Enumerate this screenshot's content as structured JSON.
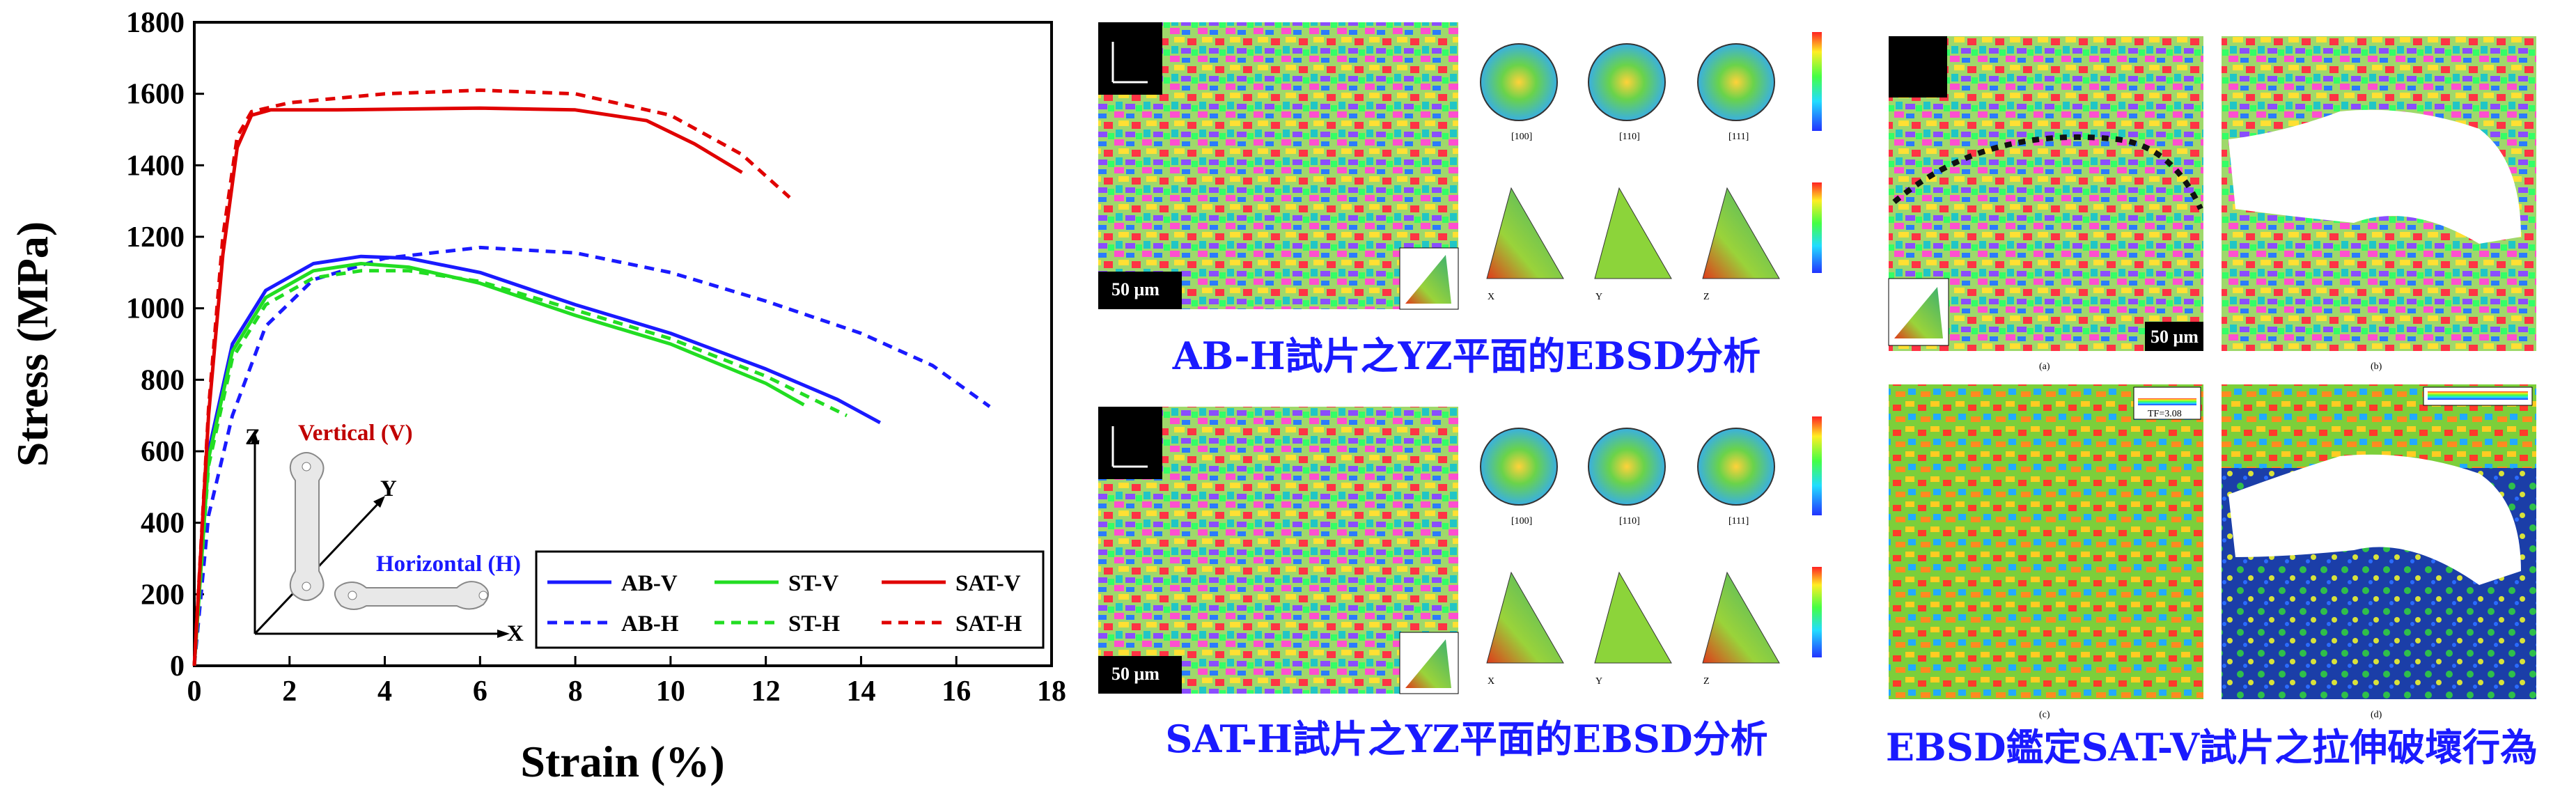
{
  "chart_data": {
    "type": "line",
    "xlabel": "Strain (%)",
    "ylabel": "Stress (MPa)",
    "xlim": [
      0,
      18
    ],
    "ylim": [
      0,
      1800
    ],
    "xticks": [
      "0",
      "2",
      "4",
      "6",
      "8",
      "10",
      "12",
      "14",
      "16",
      "18"
    ],
    "yticks": [
      "0",
      "200",
      "400",
      "600",
      "800",
      "1000",
      "1200",
      "1400",
      "1600",
      "1800"
    ],
    "legend_position": "bottom-right",
    "series": [
      {
        "name": "AB-V",
        "color": "#1a1aff",
        "dash": false,
        "points": [
          [
            0,
            0
          ],
          [
            0.3,
            600
          ],
          [
            0.8,
            900
          ],
          [
            1.5,
            1050
          ],
          [
            2.5,
            1125
          ],
          [
            3.5,
            1145
          ],
          [
            4.5,
            1140
          ],
          [
            6,
            1100
          ],
          [
            8,
            1010
          ],
          [
            10,
            930
          ],
          [
            12,
            830
          ],
          [
            13.5,
            745
          ],
          [
            14.4,
            680
          ]
        ]
      },
      {
        "name": "AB-H",
        "color": "#1a1aff",
        "dash": true,
        "points": [
          [
            0,
            0
          ],
          [
            0.3,
            420
          ],
          [
            0.8,
            700
          ],
          [
            1.5,
            950
          ],
          [
            2.5,
            1080
          ],
          [
            4,
            1140
          ],
          [
            6,
            1170
          ],
          [
            8,
            1155
          ],
          [
            10,
            1100
          ],
          [
            12,
            1020
          ],
          [
            14,
            930
          ],
          [
            15.5,
            840
          ],
          [
            16.7,
            725
          ]
        ]
      },
      {
        "name": "ST-V",
        "color": "#22dd22",
        "dash": false,
        "points": [
          [
            0,
            0
          ],
          [
            0.3,
            580
          ],
          [
            0.8,
            880
          ],
          [
            1.5,
            1030
          ],
          [
            2.5,
            1105
          ],
          [
            3.5,
            1125
          ],
          [
            4.5,
            1115
          ],
          [
            6,
            1070
          ],
          [
            8,
            980
          ],
          [
            10,
            900
          ],
          [
            12,
            790
          ],
          [
            12.8,
            730
          ]
        ]
      },
      {
        "name": "ST-H",
        "color": "#22dd22",
        "dash": true,
        "points": [
          [
            0,
            0
          ],
          [
            0.3,
            560
          ],
          [
            0.8,
            860
          ],
          [
            1.5,
            1010
          ],
          [
            2.5,
            1085
          ],
          [
            3.5,
            1105
          ],
          [
            4.5,
            1105
          ],
          [
            6,
            1075
          ],
          [
            8,
            995
          ],
          [
            10,
            915
          ],
          [
            12,
            810
          ],
          [
            13.7,
            700
          ]
        ]
      },
      {
        "name": "SAT-V",
        "color": "#e00000",
        "dash": false,
        "points": [
          [
            0,
            0
          ],
          [
            0.3,
            700
          ],
          [
            0.6,
            1150
          ],
          [
            0.9,
            1450
          ],
          [
            1.2,
            1540
          ],
          [
            1.6,
            1555
          ],
          [
            3,
            1555
          ],
          [
            6,
            1560
          ],
          [
            8,
            1555
          ],
          [
            9.5,
            1525
          ],
          [
            10.5,
            1460
          ],
          [
            11.5,
            1380
          ]
        ]
      },
      {
        "name": "SAT-H",
        "color": "#e00000",
        "dash": true,
        "points": [
          [
            0,
            0
          ],
          [
            0.3,
            720
          ],
          [
            0.6,
            1200
          ],
          [
            0.9,
            1480
          ],
          [
            1.2,
            1550
          ],
          [
            2,
            1575
          ],
          [
            4,
            1600
          ],
          [
            6,
            1610
          ],
          [
            8,
            1600
          ],
          [
            10,
            1540
          ],
          [
            11.5,
            1430
          ],
          [
            12.5,
            1310
          ]
        ]
      }
    ],
    "inset": {
      "vertical_label": "Vertical (V)",
      "horizontal_label": "Horizontal (H)",
      "axis_z": "Z",
      "axis_y": "Y",
      "axis_x": "X"
    }
  },
  "panels": {
    "caption_top": "AB-H試片之YZ平面的EBSD分析",
    "caption_middle": "SAT-H試片之YZ平面的EBSD分析",
    "caption_right": "EBSD鑑定SAT-V試片之拉伸破壞行為",
    "scale_bar": "50 μm",
    "pole_labels": [
      "[100]",
      "[110]",
      "[111]"
    ],
    "ipf_labels": [
      "X",
      "Y",
      "Z"
    ],
    "sublabels": [
      "(a)",
      "(b)",
      "(c)",
      "(d)"
    ],
    "tf_label": "TF=3.08"
  }
}
